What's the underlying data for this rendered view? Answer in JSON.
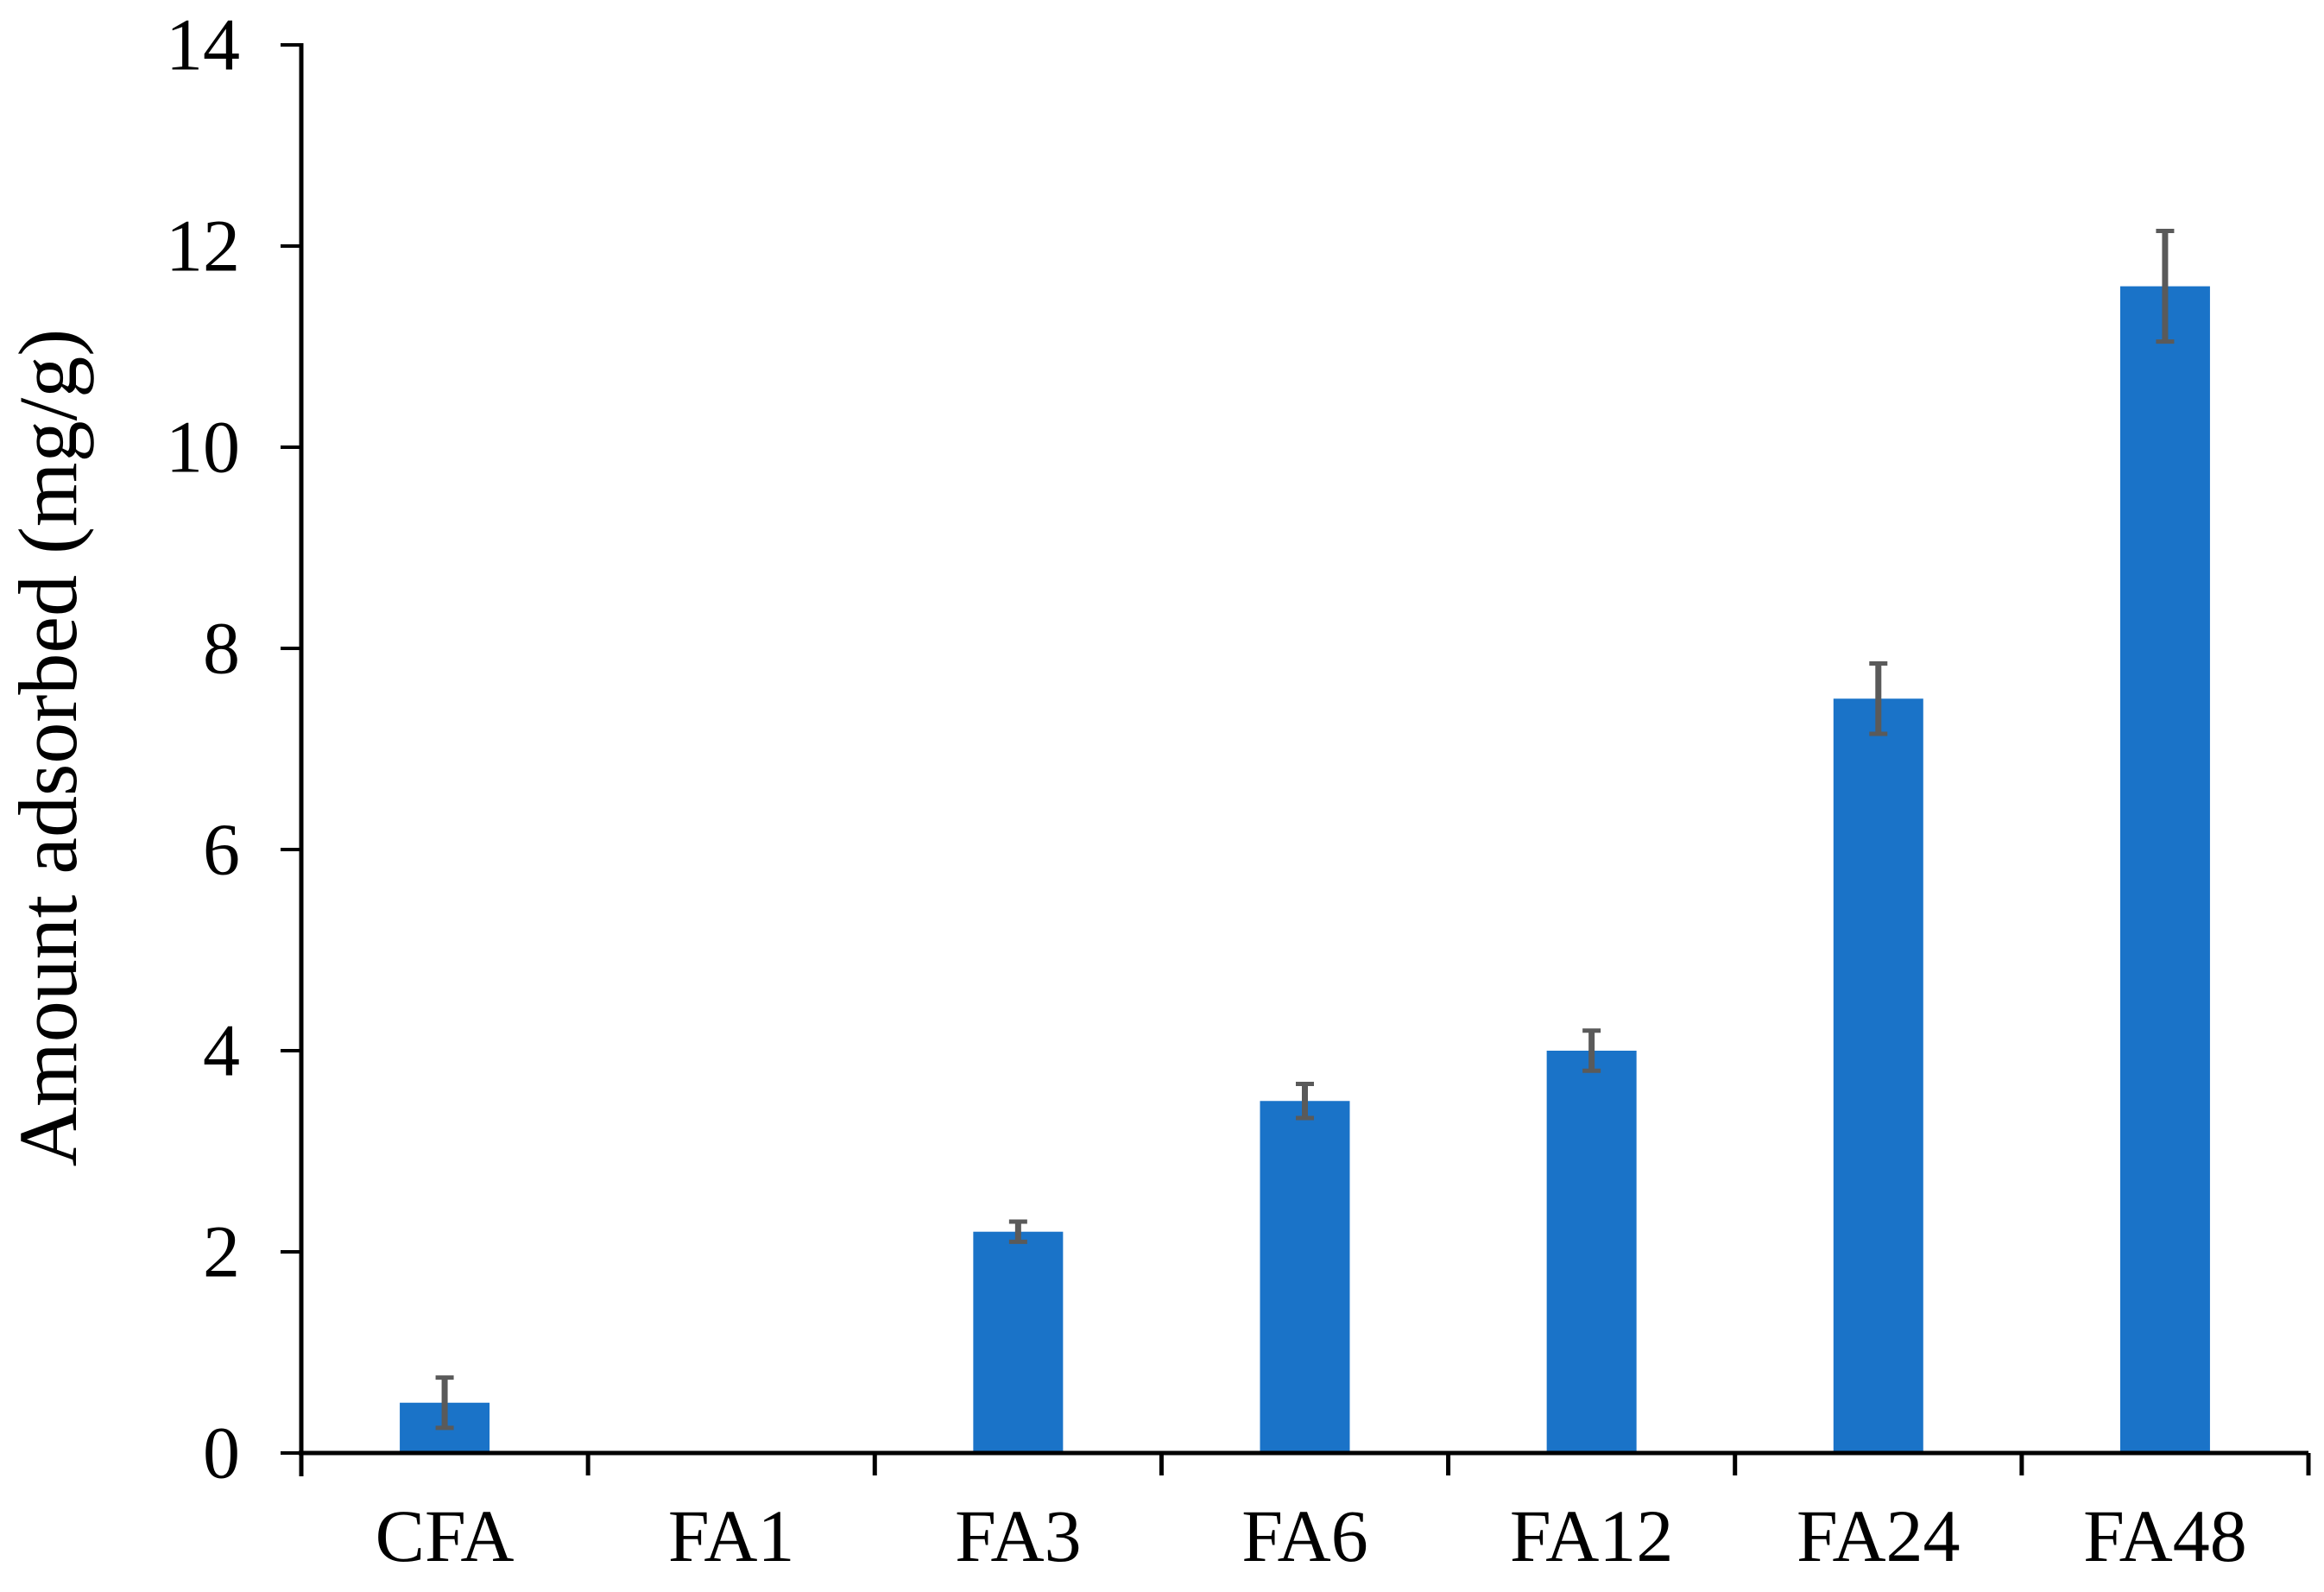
{
  "figure": {
    "background": "#ffffff"
  },
  "chart_data": {
    "type": "bar",
    "categories": [
      "CFA",
      "FA1",
      "FA3",
      "FA6",
      "FA12",
      "FA24",
      "FA48"
    ],
    "values": [
      0.5,
      0,
      2.2,
      3.5,
      4.0,
      7.5,
      11.6
    ],
    "errors": [
      0.25,
      0,
      0.1,
      0.17,
      0.2,
      0.35,
      0.55
    ],
    "title": "",
    "xlabel": "",
    "ylabel": "Amount adsorbed (mg/g)",
    "ylim": [
      0,
      14
    ],
    "yticks": [
      0,
      2,
      4,
      6,
      8,
      10,
      12,
      14
    ],
    "grid": false,
    "legend": "none",
    "bar_color": "#1A73C8",
    "error_bar_color": "#5A5A5A",
    "axis_color": "#000000",
    "text_color": "#000000"
  }
}
